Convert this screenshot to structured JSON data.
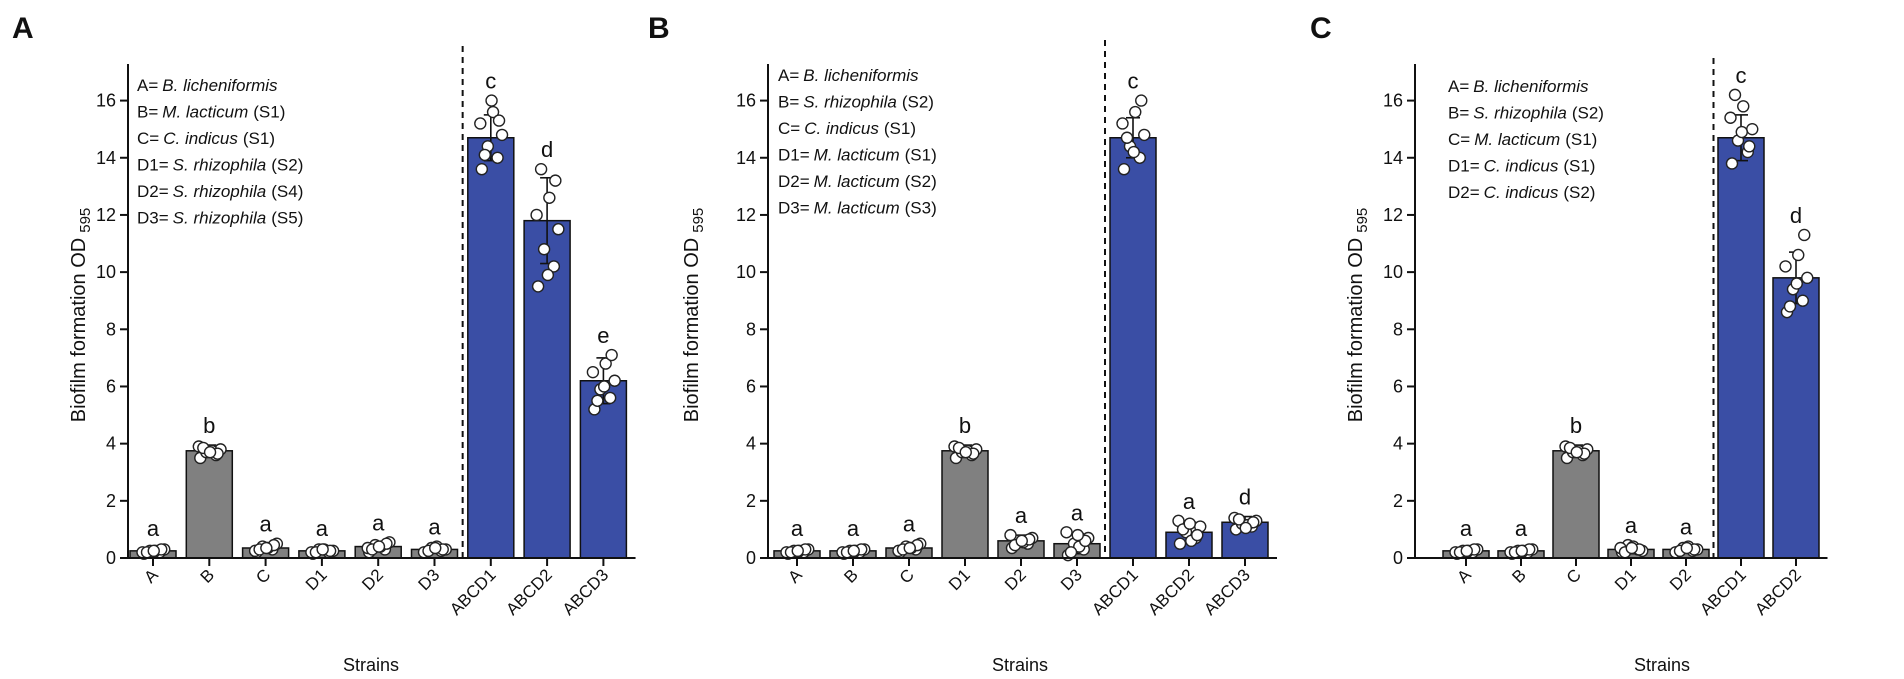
{
  "chart_data": [
    {
      "panel": "A",
      "type": "bar",
      "xlabel": "Strains",
      "ylabel": "Biofilm formation OD",
      "ylabel_sub": "595",
      "ylim": [
        0,
        17
      ],
      "yticks": [
        0,
        2,
        4,
        6,
        8,
        10,
        12,
        14,
        16
      ],
      "categories": [
        "A",
        "B",
        "C",
        "D1",
        "D2",
        "D3",
        "ABCD1",
        "ABCD2",
        "ABCD3"
      ],
      "values": [
        0.25,
        3.75,
        0.35,
        0.25,
        0.4,
        0.3,
        14.7,
        11.8,
        6.2
      ],
      "errors": [
        0.1,
        0.2,
        0.15,
        0.1,
        0.15,
        0.1,
        0.8,
        1.5,
        0.8
      ],
      "significance": [
        "a",
        "b",
        "a",
        "a",
        "a",
        "a",
        "c",
        "d",
        "e"
      ],
      "colors": [
        "#808080",
        "#808080",
        "#808080",
        "#808080",
        "#808080",
        "#808080",
        "#3a4ea5",
        "#3a4ea5",
        "#3a4ea5"
      ],
      "replicates": [
        [
          0.15,
          0.2,
          0.25,
          0.3,
          0.2,
          0.25,
          0.3,
          0.2,
          0.25
        ],
        [
          3.5,
          3.6,
          3.7,
          3.8,
          3.9,
          3.75,
          3.65,
          3.85,
          3.7
        ],
        [
          0.2,
          0.3,
          0.4,
          0.5,
          0.25,
          0.35,
          0.45,
          0.3,
          0.35
        ],
        [
          0.15,
          0.2,
          0.3,
          0.25,
          0.2,
          0.3,
          0.25,
          0.2,
          0.3
        ],
        [
          0.2,
          0.3,
          0.45,
          0.55,
          0.35,
          0.4,
          0.5,
          0.3,
          0.4
        ],
        [
          0.2,
          0.25,
          0.35,
          0.3,
          0.2,
          0.4,
          0.3,
          0.25,
          0.35
        ],
        [
          13.6,
          14.0,
          14.4,
          14.8,
          15.2,
          15.6,
          15.3,
          14.1,
          16.0
        ],
        [
          9.5,
          10.2,
          10.8,
          11.5,
          12.0,
          12.6,
          13.2,
          13.6,
          9.9
        ],
        [
          5.2,
          5.6,
          5.9,
          6.2,
          6.5,
          6.8,
          7.1,
          5.5,
          6.0
        ]
      ],
      "separator_after_index": 5,
      "legend": [
        {
          "key": "A=",
          "species": "B. licheniformis",
          "strain": ""
        },
        {
          "key": "B=",
          "species": "M. lacticum",
          "strain": "(S1)"
        },
        {
          "key": "C=",
          "species": "C. indicus",
          "strain": "(S1)"
        },
        {
          "key": "D1=",
          "species": "S. rhizophila",
          "strain": "(S2)"
        },
        {
          "key": "D2=",
          "species": "S. rhizophila",
          "strain": "(S4)"
        },
        {
          "key": "D3=",
          "species": "S. rhizophila",
          "strain": "(S5)"
        }
      ]
    },
    {
      "panel": "B",
      "type": "bar",
      "xlabel": "Strains",
      "ylabel": "Biofilm formation OD",
      "ylabel_sub": "595",
      "ylim": [
        0,
        17
      ],
      "yticks": [
        0,
        2,
        4,
        6,
        8,
        10,
        12,
        14,
        16
      ],
      "categories": [
        "A",
        "B",
        "C",
        "D1",
        "D2",
        "D3",
        "ABCD1",
        "ABCD2",
        "ABCD3"
      ],
      "values": [
        0.25,
        0.25,
        0.35,
        3.75,
        0.6,
        0.5,
        14.7,
        0.9,
        1.25
      ],
      "errors": [
        0.1,
        0.1,
        0.15,
        0.2,
        0.2,
        0.35,
        0.7,
        0.35,
        0.2
      ],
      "significance": [
        "a",
        "a",
        "a",
        "b",
        "a",
        "a",
        "c",
        "a",
        "d"
      ],
      "colors": [
        "#808080",
        "#808080",
        "#808080",
        "#808080",
        "#808080",
        "#808080",
        "#3a4ea5",
        "#3a4ea5",
        "#3a4ea5"
      ],
      "replicates": [
        [
          0.15,
          0.2,
          0.25,
          0.3,
          0.2,
          0.25,
          0.3,
          0.2,
          0.25
        ],
        [
          0.15,
          0.2,
          0.25,
          0.3,
          0.2,
          0.25,
          0.3,
          0.2,
          0.25
        ],
        [
          0.2,
          0.3,
          0.4,
          0.5,
          0.25,
          0.35,
          0.45,
          0.3,
          0.35
        ],
        [
          3.5,
          3.6,
          3.7,
          3.8,
          3.9,
          3.75,
          3.65,
          3.85,
          3.7
        ],
        [
          0.35,
          0.5,
          0.6,
          0.7,
          0.8,
          0.55,
          0.65,
          0.45,
          0.6
        ],
        [
          0.1,
          0.3,
          0.5,
          0.7,
          0.9,
          0.4,
          0.6,
          0.2,
          0.8
        ],
        [
          13.6,
          14.0,
          14.4,
          14.8,
          15.2,
          15.6,
          16.0,
          14.7,
          14.2
        ],
        [
          0.5,
          0.7,
          0.9,
          1.1,
          1.3,
          0.6,
          0.8,
          1.0,
          1.2
        ],
        [
          1.0,
          1.1,
          1.2,
          1.3,
          1.4,
          1.15,
          1.25,
          1.35,
          1.05
        ]
      ],
      "separator_after_index": 5,
      "legend": [
        {
          "key": "A=",
          "species": "B. licheniformis",
          "strain": ""
        },
        {
          "key": "B=",
          "species": "S. rhizophila",
          "strain": "(S2)"
        },
        {
          "key": "C=",
          "species": "C. indicus",
          "strain": "(S1)"
        },
        {
          "key": "D1=",
          "species": "M. lacticum",
          "strain": "(S1)"
        },
        {
          "key": "D2=",
          "species": "M. lacticum",
          "strain": "(S2)"
        },
        {
          "key": "D3=",
          "species": "M. lacticum",
          "strain": "(S3)"
        }
      ]
    },
    {
      "panel": "C",
      "type": "bar",
      "xlabel": "Strains",
      "ylabel": "Biofilm formation OD",
      "ylabel_sub": "595",
      "ylim": [
        0,
        17
      ],
      "yticks": [
        0,
        2,
        4,
        6,
        8,
        10,
        12,
        14,
        16
      ],
      "categories": [
        "A",
        "B",
        "C",
        "D1",
        "D2",
        "ABCD1",
        "ABCD2"
      ],
      "values": [
        0.25,
        0.25,
        3.75,
        0.3,
        0.3,
        14.7,
        9.8
      ],
      "errors": [
        0.1,
        0.1,
        0.2,
        0.15,
        0.1,
        0.8,
        0.9
      ],
      "significance": [
        "a",
        "a",
        "b",
        "a",
        "a",
        "c",
        "d"
      ],
      "colors": [
        "#808080",
        "#808080",
        "#808080",
        "#808080",
        "#808080",
        "#3a4ea5",
        "#3a4ea5"
      ],
      "replicates": [
        [
          0.15,
          0.2,
          0.25,
          0.3,
          0.2,
          0.25,
          0.3,
          0.2,
          0.25
        ],
        [
          0.15,
          0.2,
          0.25,
          0.3,
          0.2,
          0.25,
          0.3,
          0.2,
          0.25
        ],
        [
          3.5,
          3.6,
          3.7,
          3.8,
          3.9,
          3.75,
          3.65,
          3.85,
          3.7
        ],
        [
          0.2,
          0.3,
          0.45,
          0.25,
          0.35,
          0.4,
          0.3,
          0.2,
          0.35
        ],
        [
          0.2,
          0.25,
          0.35,
          0.3,
          0.2,
          0.4,
          0.3,
          0.25,
          0.35
        ],
        [
          13.8,
          14.2,
          14.6,
          15.0,
          15.4,
          15.8,
          14.4,
          16.2,
          14.9
        ],
        [
          8.6,
          9.0,
          9.4,
          9.8,
          10.2,
          10.6,
          11.3,
          8.8,
          9.6
        ]
      ],
      "separator_after_index": 4,
      "legend": [
        {
          "key": "A=",
          "species": "B. licheniformis",
          "strain": ""
        },
        {
          "key": "B=",
          "species": "S. rhizophila",
          "strain": "(S2)"
        },
        {
          "key": "C=",
          "species": "M. lacticum",
          "strain": "(S1)"
        },
        {
          "key": "D1=",
          "species": "C. indicus",
          "strain": "(S1)"
        },
        {
          "key": "D2=",
          "species": "C. indicus",
          "strain": "(S2)"
        }
      ]
    }
  ]
}
